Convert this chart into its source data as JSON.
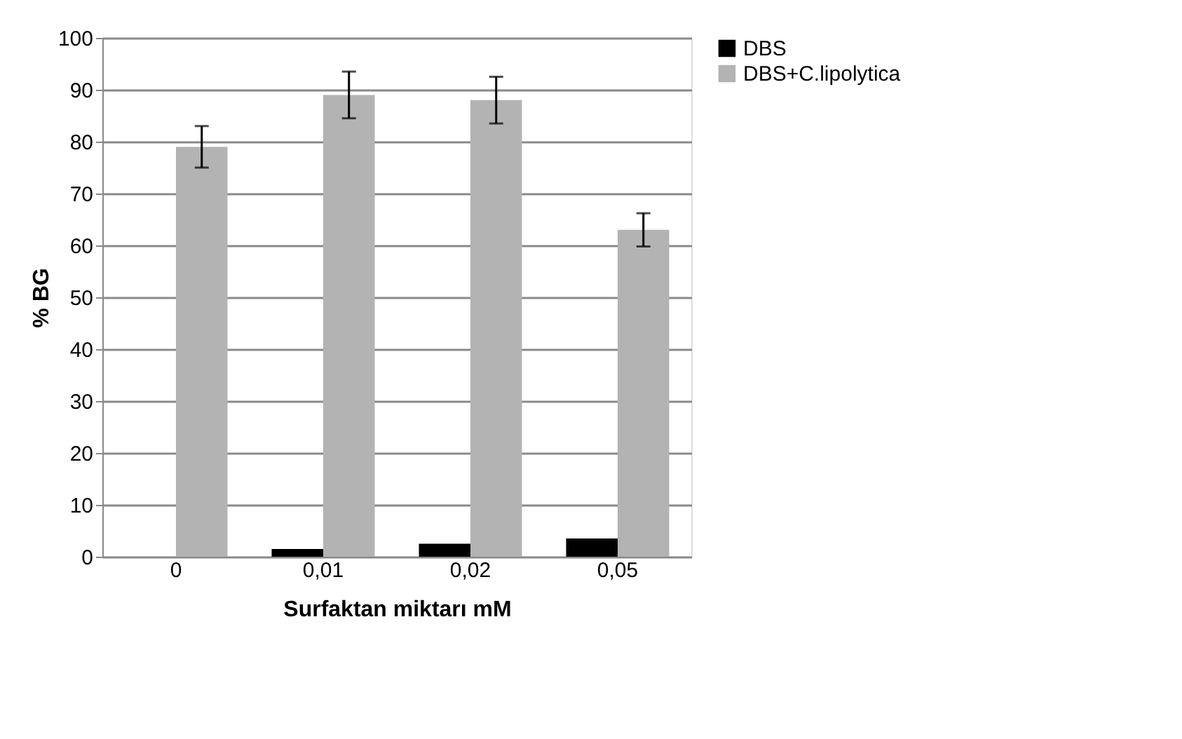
{
  "chart_data": {
    "type": "bar",
    "xlabel": "Surfaktan miktarı mM",
    "ylabel": "% BG",
    "categories": [
      "0",
      "0,01",
      "0,02",
      "0,05"
    ],
    "series": [
      {
        "name": "DBS",
        "color": "#000000",
        "values": [
          0,
          1.5,
          2.5,
          3.5
        ]
      },
      {
        "name": "DBS+C.lipolytica",
        "color": "#b3b3b3",
        "values": [
          79,
          89,
          88,
          63
        ],
        "errors": [
          4,
          4.5,
          4.5,
          3.2
        ]
      }
    ],
    "ylim": [
      0,
      100
    ],
    "yticks": [
      0,
      10,
      20,
      30,
      40,
      50,
      60,
      70,
      80,
      90,
      100
    ],
    "grid": "y",
    "legend": "right"
  }
}
